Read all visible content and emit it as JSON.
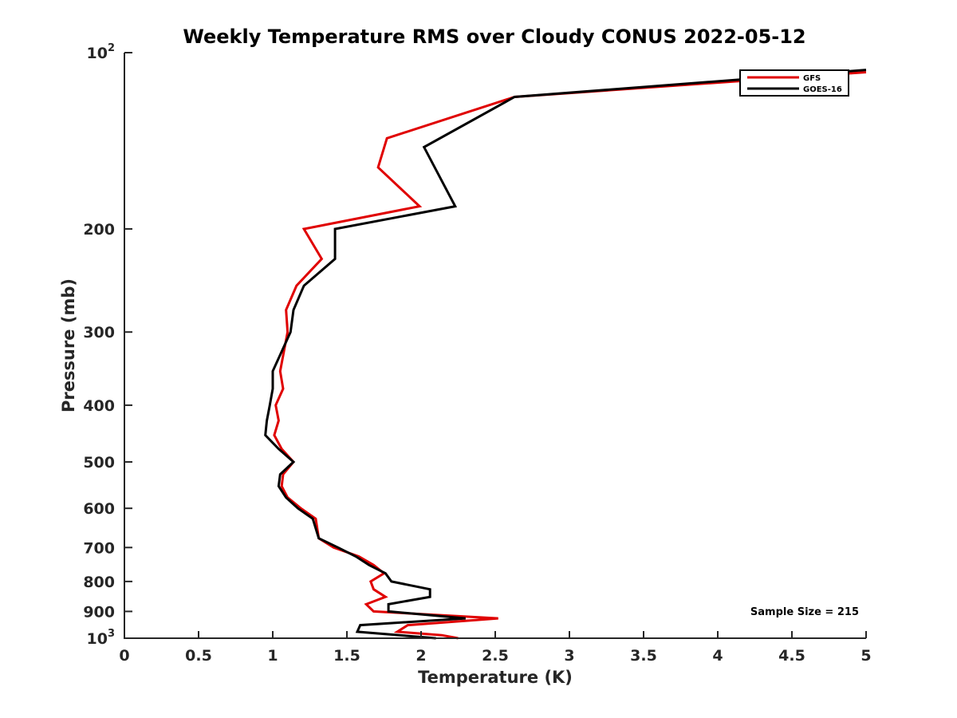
{
  "chart_data": {
    "type": "line",
    "title": "Weekly Temperature RMS over Cloudy CONUS 2022-05-12",
    "xlabel": "Temperature (K)",
    "ylabel": "Pressure (mb)",
    "xlim": [
      0,
      5
    ],
    "ylim": [
      100,
      1000
    ],
    "y_scale": "log",
    "y_reversed": true,
    "grid": false,
    "legend_position": "top-right",
    "x_ticks": [
      {
        "value": 0,
        "label": "0"
      },
      {
        "value": 0.5,
        "label": "0.5"
      },
      {
        "value": 1,
        "label": "1"
      },
      {
        "value": 1.5,
        "label": "1.5"
      },
      {
        "value": 2,
        "label": "2"
      },
      {
        "value": 2.5,
        "label": "2.5"
      },
      {
        "value": 3,
        "label": "3"
      },
      {
        "value": 3.5,
        "label": "3.5"
      },
      {
        "value": 4,
        "label": "4"
      },
      {
        "value": 4.5,
        "label": "4.5"
      },
      {
        "value": 5,
        "label": "5"
      }
    ],
    "y_ticks": [
      {
        "value": 100,
        "label": "10",
        "sup": "2"
      },
      {
        "value": 200,
        "label": "200",
        "sup": ""
      },
      {
        "value": 300,
        "label": "300",
        "sup": ""
      },
      {
        "value": 400,
        "label": "400",
        "sup": ""
      },
      {
        "value": 500,
        "label": "500",
        "sup": ""
      },
      {
        "value": 600,
        "label": "600",
        "sup": ""
      },
      {
        "value": 700,
        "label": "700",
        "sup": ""
      },
      {
        "value": 800,
        "label": "800",
        "sup": ""
      },
      {
        "value": 900,
        "label": "900",
        "sup": ""
      },
      {
        "value": 1000,
        "label": "10",
        "sup": "3"
      }
    ],
    "series": [
      {
        "name": "GFS",
        "color": "#e00000",
        "points": [
          [
            5.0,
            108
          ],
          [
            2.63,
            119
          ],
          [
            1.77,
            140
          ],
          [
            1.71,
            157
          ],
          [
            1.99,
            183
          ],
          [
            1.21,
            200
          ],
          [
            1.33,
            225
          ],
          [
            1.16,
            250
          ],
          [
            1.09,
            275
          ],
          [
            1.1,
            300
          ],
          [
            1.05,
            350
          ],
          [
            1.07,
            375
          ],
          [
            1.02,
            400
          ],
          [
            1.04,
            425
          ],
          [
            1.01,
            450
          ],
          [
            1.06,
            475
          ],
          [
            1.14,
            500
          ],
          [
            1.07,
            525
          ],
          [
            1.06,
            550
          ],
          [
            1.1,
            575
          ],
          [
            1.19,
            600
          ],
          [
            1.29,
            625
          ],
          [
            1.31,
            675
          ],
          [
            1.41,
            700
          ],
          [
            1.58,
            725
          ],
          [
            1.68,
            750
          ],
          [
            1.75,
            775
          ],
          [
            1.66,
            800
          ],
          [
            1.68,
            825
          ],
          [
            1.76,
            850
          ],
          [
            1.63,
            875
          ],
          [
            1.68,
            900
          ],
          [
            2.52,
            925
          ],
          [
            1.91,
            950
          ],
          [
            1.84,
            975
          ],
          [
            2.14,
            988
          ],
          [
            2.25,
            1000
          ]
        ]
      },
      {
        "name": "GOES-16",
        "color": "#000000",
        "points": [
          [
            5.0,
            107
          ],
          [
            2.63,
            119
          ],
          [
            2.02,
            145
          ],
          [
            2.23,
            183
          ],
          [
            1.42,
            200
          ],
          [
            1.42,
            225
          ],
          [
            1.21,
            250
          ],
          [
            1.14,
            275
          ],
          [
            1.12,
            300
          ],
          [
            1.0,
            350
          ],
          [
            1.0,
            375
          ],
          [
            0.98,
            400
          ],
          [
            0.96,
            425
          ],
          [
            0.95,
            450
          ],
          [
            1.04,
            475
          ],
          [
            1.14,
            500
          ],
          [
            1.05,
            525
          ],
          [
            1.04,
            550
          ],
          [
            1.09,
            575
          ],
          [
            1.17,
            600
          ],
          [
            1.27,
            625
          ],
          [
            1.31,
            675
          ],
          [
            1.44,
            700
          ],
          [
            1.56,
            725
          ],
          [
            1.65,
            750
          ],
          [
            1.76,
            775
          ],
          [
            1.8,
            800
          ],
          [
            2.06,
            825
          ],
          [
            2.06,
            850
          ],
          [
            1.78,
            875
          ],
          [
            1.78,
            900
          ],
          [
            2.3,
            925
          ],
          [
            1.59,
            950
          ],
          [
            1.57,
            975
          ],
          [
            2.1,
            1000
          ]
        ]
      }
    ],
    "annotations": [
      {
        "text": "Sample Size = 215",
        "position": "bottom-right"
      }
    ]
  }
}
